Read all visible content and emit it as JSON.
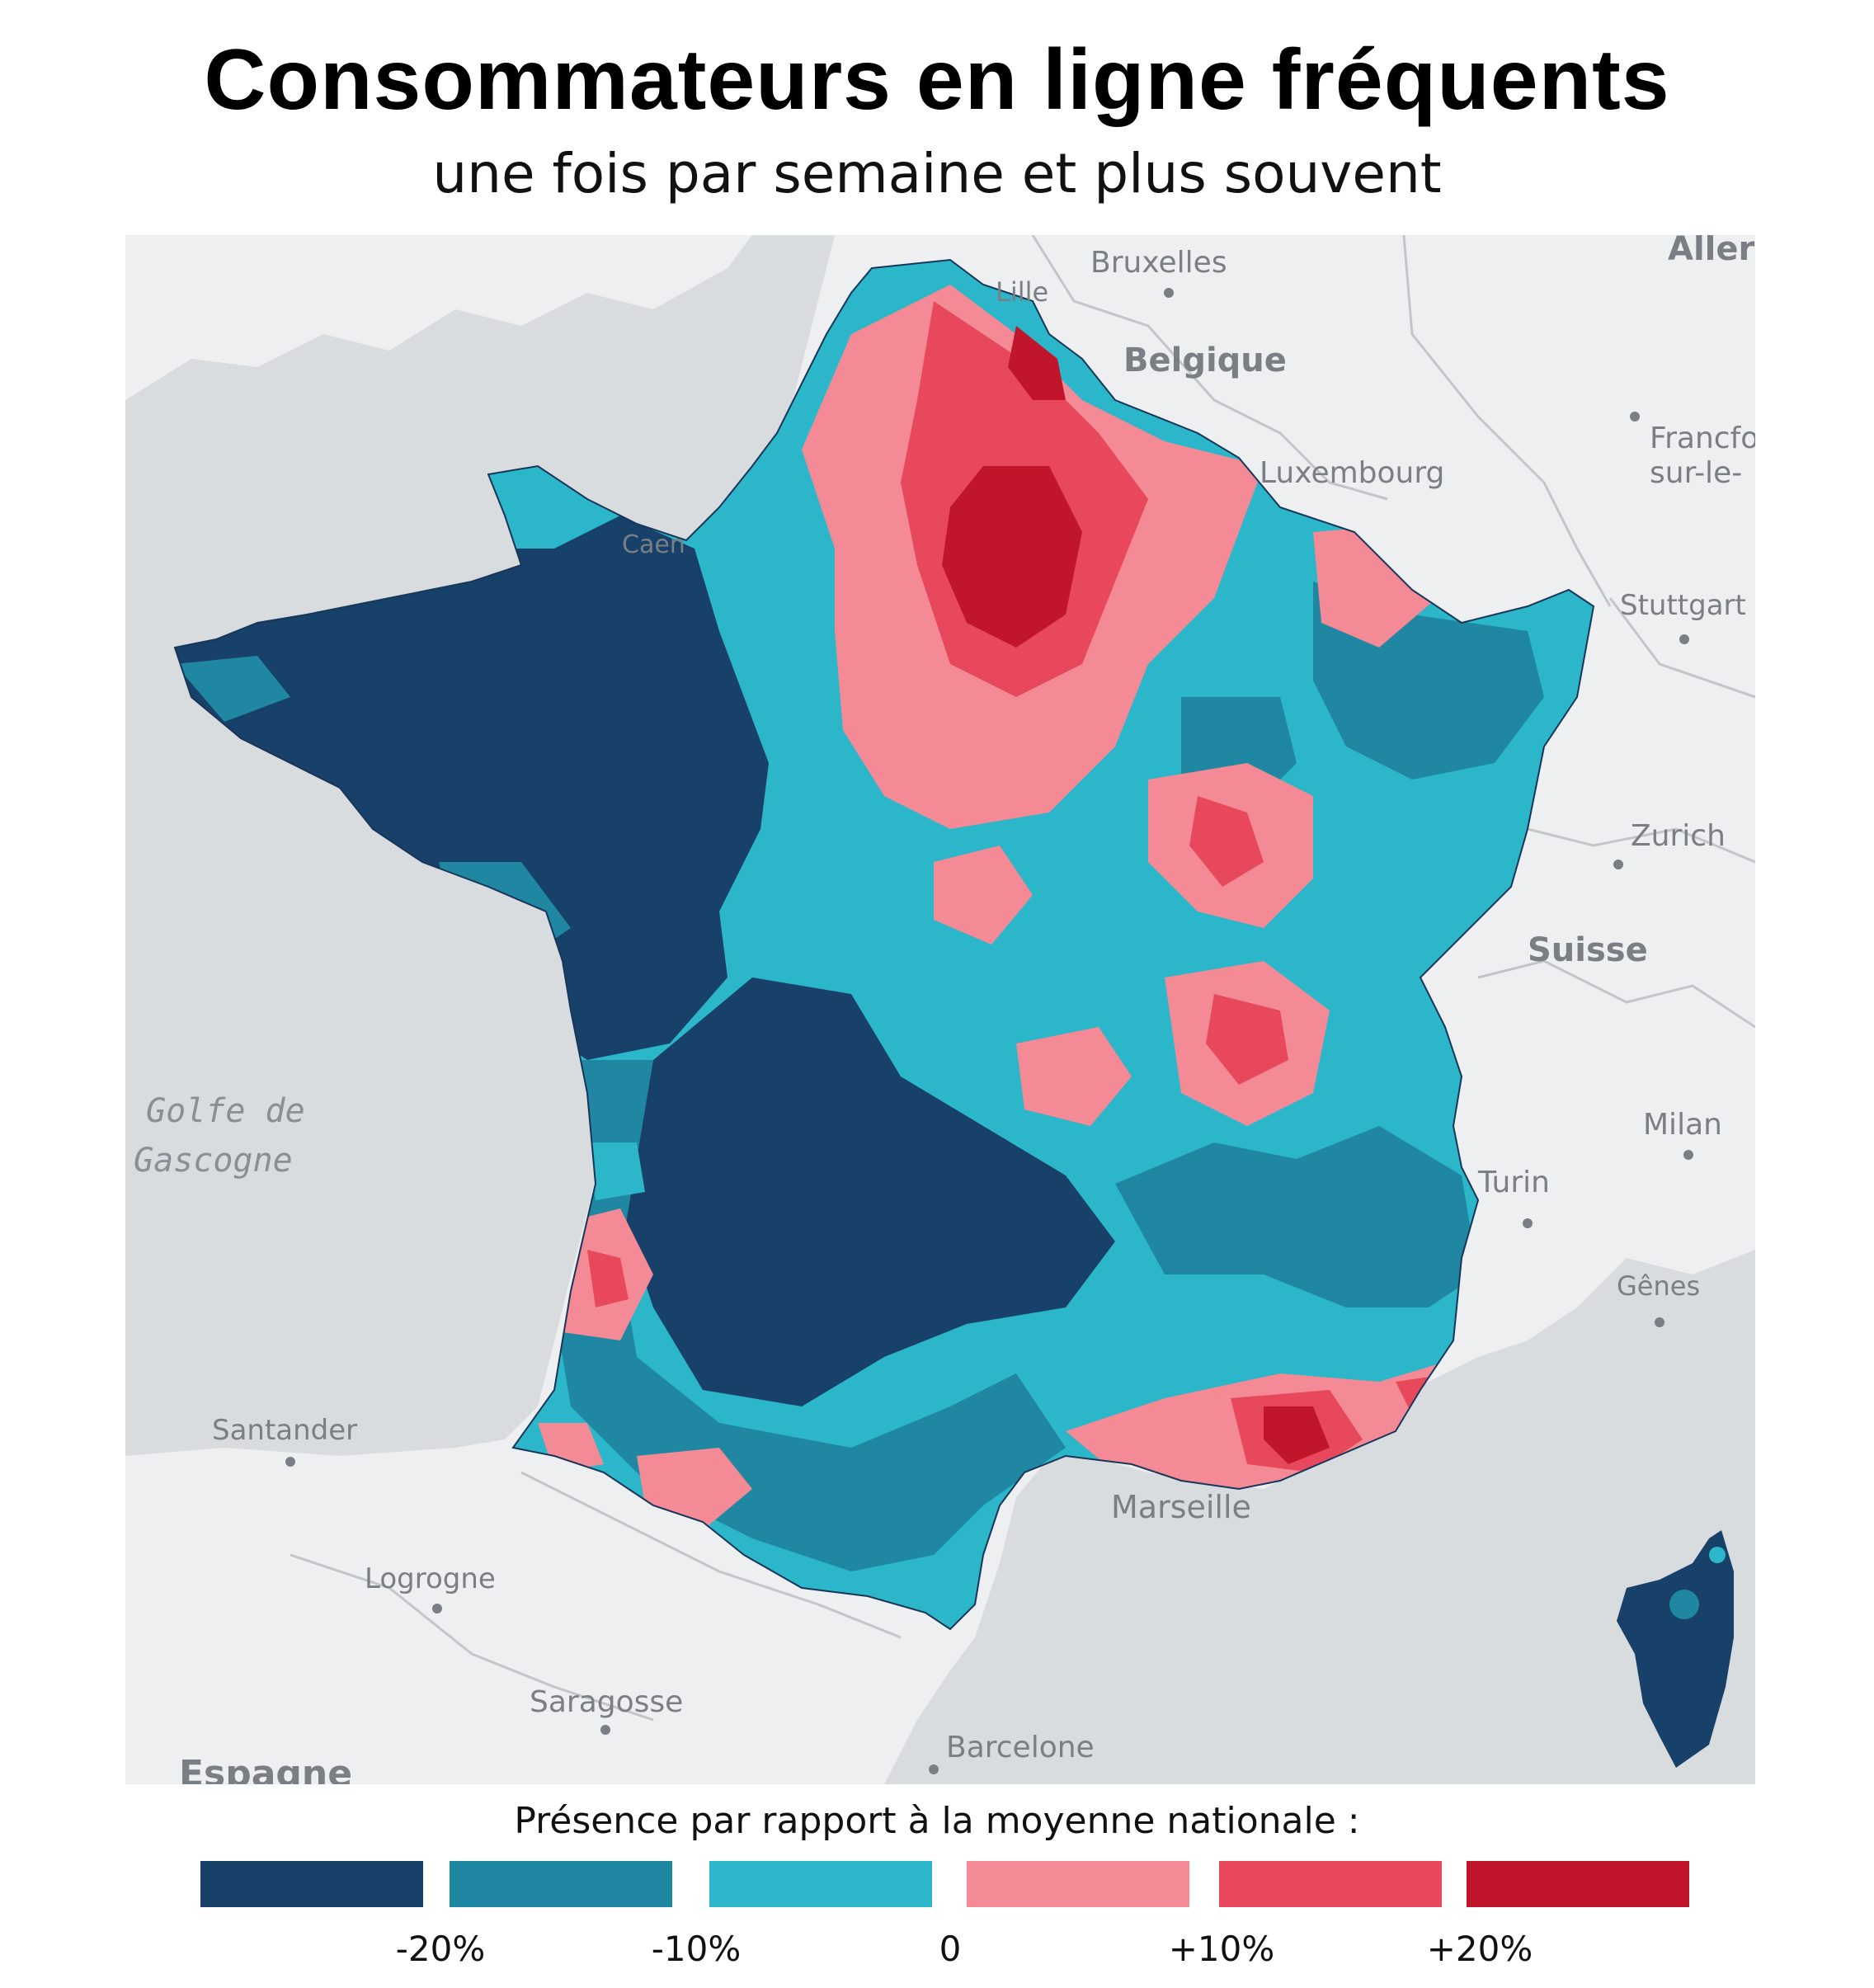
{
  "title": "Consommateurs en ligne fréquents",
  "subtitle": "une fois par semaine et plus souvent",
  "legend": {
    "title": "Présence par rapport à la moyenne nationale :",
    "classes": [
      {
        "color": "#174169"
      },
      {
        "color": "#1f87a1"
      },
      {
        "color": "#2cb6c9"
      },
      {
        "color": "#f38a96"
      },
      {
        "color": "#e8485b"
      },
      {
        "color": "#c0152a"
      }
    ],
    "ticks": [
      "-20%",
      "-10%",
      "0",
      "+10%",
      "+20%"
    ]
  },
  "map": {
    "land_color": "#eeeff0",
    "sea_color": "#d9dcdf",
    "border_color": "#c3c6c9",
    "labels": {
      "bruxelles": "Bruxelles",
      "lille": "Lille",
      "belgique": "Belgique",
      "luxembourg": "Luxembourg",
      "allemagne": "Aller",
      "francfort_1": "Francfo",
      "francfort_2": "sur-le-",
      "stuttgart": "Stuttgart",
      "zurich": "Zurich",
      "suisse": "Suisse",
      "milan": "Milan",
      "turin": "Turin",
      "genes": "Gênes",
      "marseille": "Marseille",
      "barcelone": "Barcelone",
      "saragosse": "Saragosse",
      "logrogne": "Logrogne",
      "santander": "Santander",
      "espagne": "Espagne",
      "caen": "Caen",
      "golfe_1": "Golfe de",
      "golfe_2": "Gascogne"
    }
  }
}
